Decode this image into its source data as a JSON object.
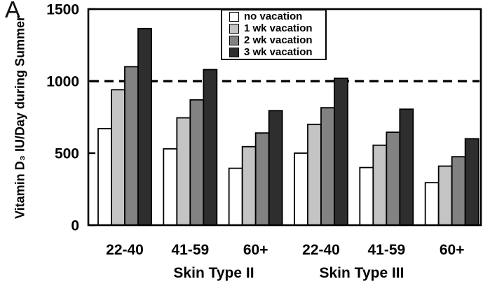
{
  "panel_label": "A",
  "chart_data": {
    "type": "bar",
    "title": "",
    "xlabel": "",
    "ylabel": "Vitamin D₃ IU/Day during Summer",
    "ylim": [
      0,
      1500
    ],
    "yticks": [
      0,
      500,
      1000,
      1500
    ],
    "reference_line_y": 1000,
    "grid": false,
    "legend_position": "top-center-inside",
    "group_labels": [
      "Skin Type II",
      "Skin Type III"
    ],
    "categories": [
      "22-40",
      "41-59",
      "60+",
      "22-40",
      "41-59",
      "60+"
    ],
    "series": [
      {
        "name": "no vacation",
        "color": "#ffffff",
        "values": [
          670,
          530,
          395,
          500,
          400,
          295
        ]
      },
      {
        "name": "1 wk vacation",
        "color": "#c4c4c4",
        "values": [
          940,
          745,
          545,
          700,
          555,
          410
        ]
      },
      {
        "name": "2 wk vacation",
        "color": "#828282",
        "values": [
          1100,
          870,
          640,
          815,
          645,
          475
        ]
      },
      {
        "name": "3 wk vacation",
        "color": "#2e2e2e",
        "values": [
          1365,
          1080,
          795,
          1020,
          805,
          600
        ]
      }
    ],
    "colors": {
      "axis": "#000000",
      "reference_line": "#000000",
      "background": "#ffffff",
      "bar_outline": "#000000"
    }
  }
}
